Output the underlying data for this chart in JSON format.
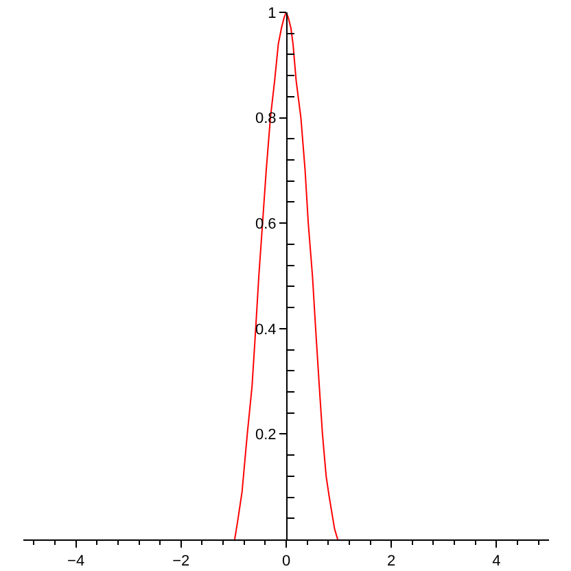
{
  "chart_data": {
    "type": "line",
    "color": "#ff0000",
    "line_style": "solid",
    "x": [
      -0.98,
      -0.93,
      -0.84,
      -0.74,
      -0.65,
      -0.58,
      -0.52,
      -0.45,
      -0.38,
      -0.3,
      -0.22,
      -0.15,
      -0.09,
      -0.04,
      0,
      0.04,
      0.09,
      0.13,
      0.19,
      0.28,
      0.36,
      0.42,
      0.5,
      0.56,
      0.63,
      0.69,
      0.76,
      0.82,
      0.92,
      0.98
    ],
    "values": [
      0,
      0.03,
      0.09,
      0.2,
      0.29,
      0.4,
      0.5,
      0.6,
      0.7,
      0.8,
      0.87,
      0.94,
      0.97,
      0.99,
      1,
      0.99,
      0.97,
      0.94,
      0.87,
      0.8,
      0.7,
      0.6,
      0.5,
      0.4,
      0.29,
      0.2,
      0.12,
      0.08,
      0.02,
      0
    ],
    "xlim": [
      -5,
      5
    ],
    "ylim": [
      0,
      1
    ],
    "xticks": [
      {
        "value": -4.8,
        "label": null
      },
      {
        "value": -4.4,
        "label": null
      },
      -4,
      {
        "value": -3.6,
        "label": null
      },
      {
        "value": -3.2,
        "label": null
      },
      {
        "value": -2.8,
        "label": null
      },
      {
        "value": -2.4,
        "label": null
      },
      -2,
      {
        "value": -1.6,
        "label": null
      },
      {
        "value": -1.2,
        "label": null
      },
      {
        "value": -0.8,
        "label": null
      },
      {
        "value": -0.4,
        "label": null
      },
      0,
      {
        "value": 0.4,
        "label": null
      },
      {
        "value": 0.8,
        "label": null
      },
      {
        "value": 1.2,
        "label": null
      },
      {
        "value": 1.6,
        "label": null
      },
      2,
      {
        "value": 2.4,
        "label": null
      },
      {
        "value": 2.8,
        "label": null
      },
      {
        "value": 3.2,
        "label": null
      },
      {
        "value": 3.6,
        "label": null
      },
      4,
      {
        "value": 4.4,
        "label": null
      },
      {
        "value": 4.8,
        "label": null
      }
    ],
    "yticks": [
      {
        "value": 0.04,
        "label": null
      },
      {
        "value": 0.08,
        "label": null
      },
      {
        "value": 0.12,
        "label": null
      },
      {
        "value": 0.16,
        "label": null
      },
      0.2,
      {
        "value": 0.24,
        "label": null
      },
      {
        "value": 0.28,
        "label": null
      },
      {
        "value": 0.32,
        "label": null
      },
      {
        "value": 0.36,
        "label": null
      },
      0.4,
      {
        "value": 0.44,
        "label": null
      },
      {
        "value": 0.48,
        "label": null
      },
      {
        "value": 0.52,
        "label": null
      },
      {
        "value": 0.56,
        "label": null
      },
      0.6,
      {
        "value": 0.64,
        "label": null
      },
      {
        "value": 0.68,
        "label": null
      },
      {
        "value": 0.72,
        "label": null
      },
      {
        "value": 0.76,
        "label": null
      },
      0.8,
      {
        "value": 0.84,
        "label": null
      },
      {
        "value": 0.88,
        "label": null
      },
      {
        "value": 0.92,
        "label": null
      },
      {
        "value": 0.96,
        "label": null
      },
      1
    ]
  }
}
